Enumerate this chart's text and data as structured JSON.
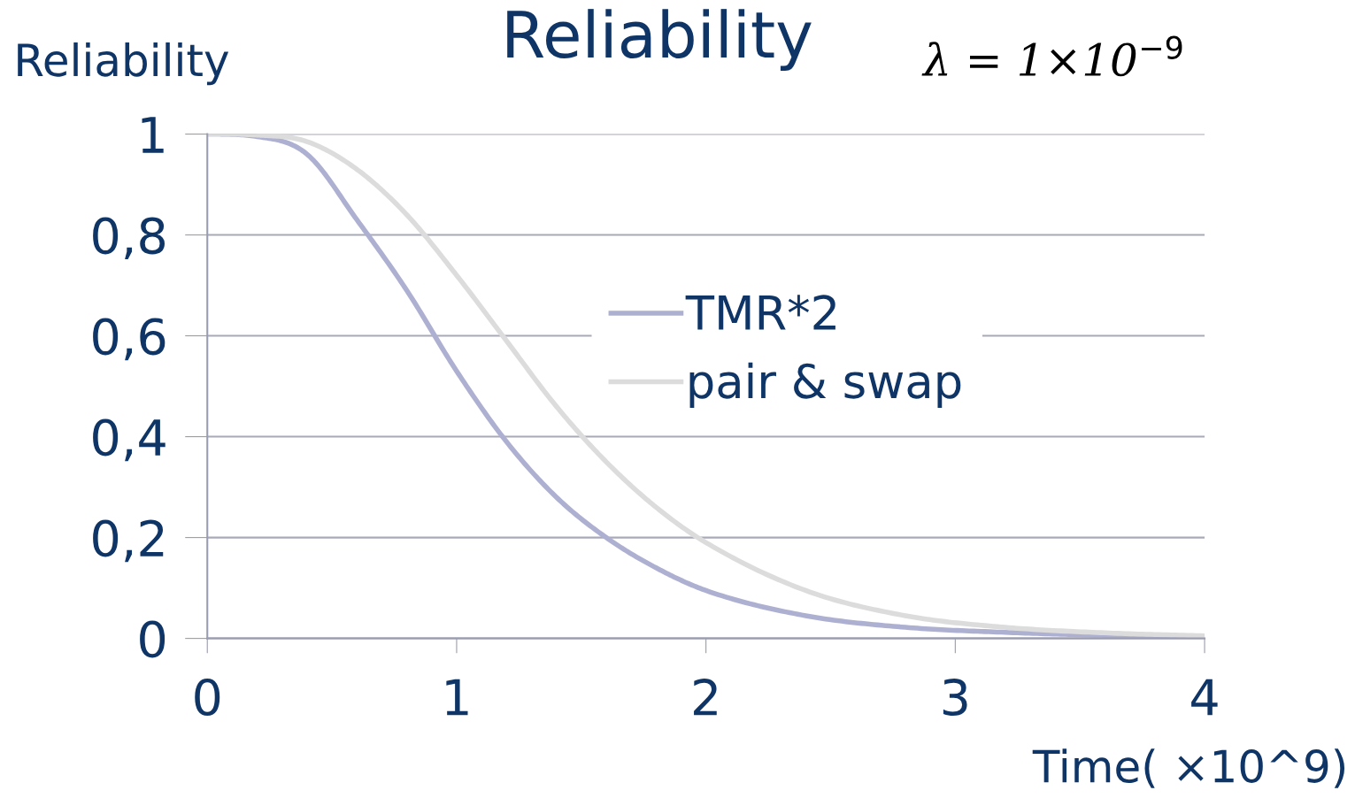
{
  "chart_data": {
    "type": "line",
    "title": "Reliability",
    "ylabel": "Reliability",
    "xlabel": "Time( ×10^9)",
    "annotations": [
      "λ = 1×10$^{−9}$"
    ],
    "xlim": [
      0,
      4
    ],
    "xticks": [
      0,
      1,
      2,
      3,
      4
    ],
    "ylim": [
      0,
      1
    ],
    "yticks": [
      {
        "value": 0,
        "label": "0"
      },
      {
        "value": 0.2,
        "label": "0,2"
      },
      {
        "value": 0.4,
        "label": "0,4"
      },
      {
        "value": 0.6,
        "label": "0,6"
      },
      {
        "value": 0.8,
        "label": "0,8"
      },
      {
        "value": 1,
        "label": "1"
      }
    ],
    "grid": "y",
    "legend": "right",
    "marker": "none",
    "line_style": "solid",
    "series": [
      {
        "name": "TMR*2",
        "color": "#aeb0d1",
        "x": [
          0,
          0.2,
          0.4,
          0.6,
          0.8,
          1.0,
          1.2,
          1.4,
          1.6,
          1.8,
          2.0,
          2.4,
          2.8,
          3.2,
          3.6,
          4.0
        ],
        "values": [
          1,
          0.995,
          0.96,
          0.83,
          0.69,
          0.53,
          0.39,
          0.28,
          0.2,
          0.14,
          0.095,
          0.045,
          0.022,
          0.012,
          0.006,
          0.003
        ]
      },
      {
        "name": "pair & swap",
        "color": "#dcdcdc",
        "x": [
          0,
          0.2,
          0.4,
          0.6,
          0.8,
          1.0,
          1.2,
          1.4,
          1.6,
          1.8,
          2.0,
          2.4,
          2.8,
          3.2,
          3.6,
          4.0
        ],
        "values": [
          1,
          0.998,
          0.985,
          0.93,
          0.84,
          0.72,
          0.59,
          0.46,
          0.35,
          0.26,
          0.19,
          0.095,
          0.045,
          0.022,
          0.011,
          0.005
        ]
      }
    ]
  }
}
